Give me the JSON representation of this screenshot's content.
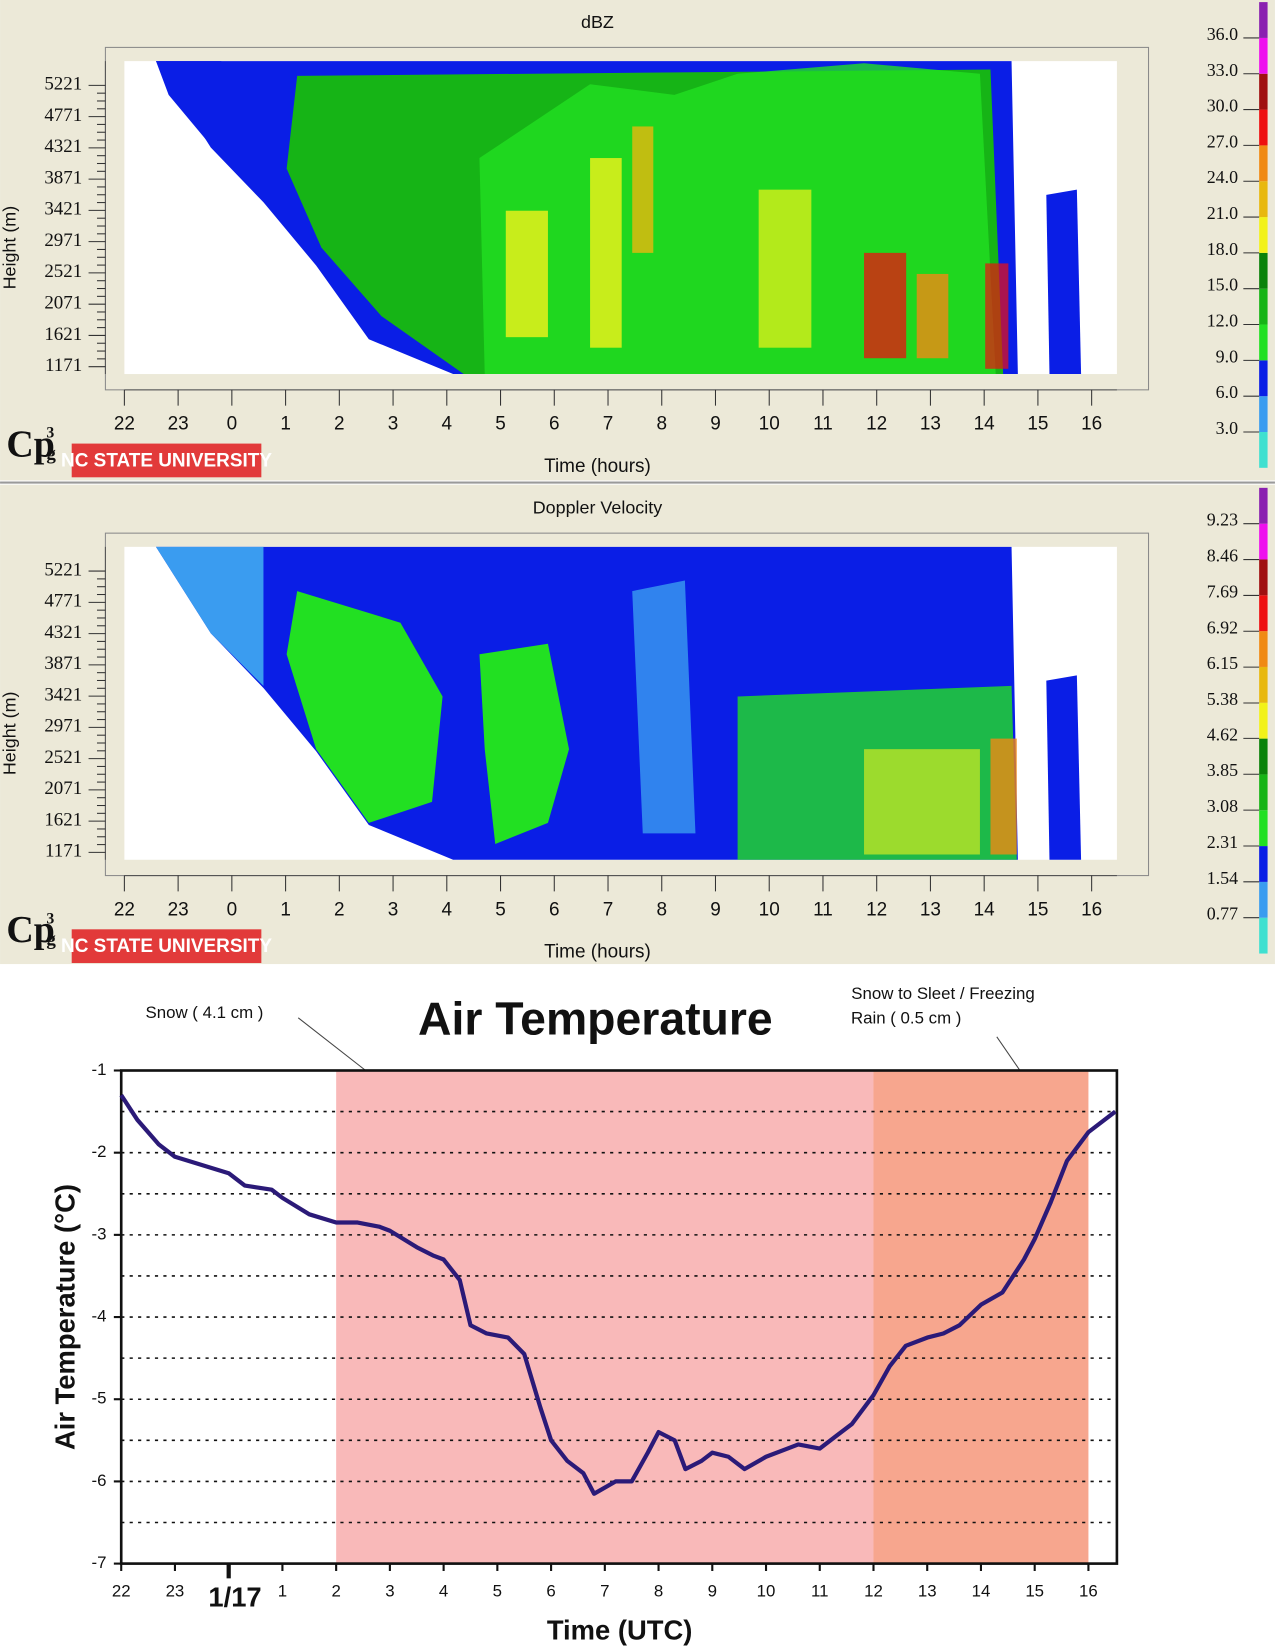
{
  "chart_data": [
    {
      "type": "heatmap",
      "title": "dBZ",
      "x_label": "Time (hours)",
      "y_label": "Height (m)",
      "xlim": [
        -2,
        16.47
      ],
      "xticks": [
        {
          "value": -2,
          "label": "22"
        },
        {
          "value": -1,
          "label": "23"
        },
        0,
        1,
        2,
        3,
        4,
        5,
        6,
        7,
        8,
        9,
        10,
        11,
        12,
        13,
        14,
        15,
        16
      ],
      "ylim": [
        1065,
        5570
      ],
      "yticks": [
        1171,
        1621,
        2071,
        2521,
        2971,
        3421,
        3871,
        4321,
        4771,
        5221
      ],
      "colorbar": {
        "lim": [
          0,
          39
        ],
        "ticks": [
          {
            "value": 3,
            "label": "3.0"
          },
          {
            "value": 6,
            "label": "6.0"
          },
          {
            "value": 9,
            "label": "9.0"
          },
          {
            "value": 12,
            "label": "12.0"
          },
          {
            "value": 15,
            "label": "15.0"
          },
          {
            "value": 18,
            "label": "18.0"
          },
          {
            "value": 21,
            "label": "21.0"
          },
          {
            "value": 24,
            "label": "24.0"
          },
          {
            "value": 27,
            "label": "27.0"
          },
          {
            "value": 30,
            "label": "30.0"
          },
          {
            "value": 33,
            "label": "33.0"
          },
          {
            "value": 36,
            "label": "36.0"
          }
        ],
        "colors": [
          "#40e0d0",
          "#3a9cf0",
          "#0a1ee6",
          "#22e022",
          "#16b416",
          "#0a820a",
          "#f2f21a",
          "#e8b80e",
          "#f08a14",
          "#ee1010",
          "#a01010",
          "#ee10ee",
          "#8a20b0"
        ]
      },
      "logo": {
        "mark": "Cp",
        "sup": "3",
        "sub": "g",
        "university": "NC STATE UNIVERSITY"
      }
    },
    {
      "type": "heatmap",
      "title": "Doppler Velocity",
      "x_label": "Time (hours)",
      "y_label": "Height (m)",
      "xlim": [
        -2,
        16.47
      ],
      "xticks": [
        {
          "value": -2,
          "label": "22"
        },
        {
          "value": -1,
          "label": "23"
        },
        0,
        1,
        2,
        3,
        4,
        5,
        6,
        7,
        8,
        9,
        10,
        11,
        12,
        13,
        14,
        15,
        16
      ],
      "ylim": [
        1065,
        5570
      ],
      "yticks": [
        1171,
        1621,
        2071,
        2521,
        2971,
        3421,
        3871,
        4321,
        4771,
        5221
      ],
      "colorbar": {
        "lim": [
          0,
          10
        ],
        "ticks": [
          0.77,
          1.54,
          2.31,
          3.08,
          3.85,
          4.62,
          5.38,
          6.15,
          6.92,
          7.69,
          8.46,
          9.23
        ],
        "colors": [
          "#40e0d0",
          "#3a9cf0",
          "#0a1ee6",
          "#22e022",
          "#16b416",
          "#0a820a",
          "#f2f21a",
          "#e8b80e",
          "#f08a14",
          "#ee1010",
          "#a01010",
          "#ee10ee",
          "#8a20b0"
        ]
      },
      "logo": {
        "mark": "Cp",
        "sup": "3",
        "sub": "g",
        "university": "NC STATE UNIVERSITY"
      }
    },
    {
      "type": "line",
      "title": "Air Temperature",
      "x_label": "Time (UTC)",
      "y_label": "Air Temperature (°C)",
      "xlim": [
        -2,
        16.53
      ],
      "xticks": [
        {
          "value": -2,
          "label": "22"
        },
        {
          "value": -1,
          "label": "23"
        },
        {
          "value": 0,
          "label": "1/17"
        },
        1,
        2,
        3,
        4,
        5,
        6,
        7,
        8,
        9,
        10,
        11,
        12,
        13,
        14,
        15,
        16
      ],
      "ylim": [
        -7,
        -1
      ],
      "yticks": [
        -7,
        -6,
        -5,
        -4,
        -3,
        -2,
        -1
      ],
      "gridlines": [
        -6.5,
        -6,
        -5.5,
        -5,
        -4.5,
        -4,
        -3.5,
        -3,
        -2.5,
        -2,
        -1.5
      ],
      "regions": [
        {
          "x": [
            2,
            12
          ],
          "color": "#f9b9b9"
        },
        {
          "x": [
            12,
            16
          ],
          "color": "#f7a68e"
        }
      ],
      "annotations": [
        {
          "lines": [
            "Snow ( 4.1 cm )"
          ]
        },
        {
          "lines": [
            "Snow to Sleet / Freezing",
            "Rain ( 0.5 cm )"
          ]
        }
      ],
      "color": "#2b1a78",
      "x": [
        -2.0,
        -1.7,
        -1.3,
        -1.0,
        -0.5,
        0,
        0.3,
        0.8,
        1.0,
        1.5,
        2.0,
        2.4,
        2.8,
        3.0,
        3.5,
        3.8,
        4.0,
        4.3,
        4.5,
        4.8,
        5.2,
        5.5,
        5.8,
        6.0,
        6.3,
        6.6,
        6.8,
        7.2,
        7.5,
        7.8,
        8.0,
        8.3,
        8.5,
        8.8,
        9.0,
        9.3,
        9.6,
        10.0,
        10.4,
        10.6,
        11.0,
        11.3,
        11.6,
        12.0,
        12.3,
        12.6,
        13.0,
        13.3,
        13.6,
        14.0,
        14.4,
        14.8,
        15.0,
        15.3,
        15.6,
        16.0,
        16.5
      ],
      "values": [
        -1.3,
        -1.6,
        -1.9,
        -2.05,
        -2.15,
        -2.25,
        -2.4,
        -2.45,
        -2.55,
        -2.75,
        -2.85,
        -2.85,
        -2.9,
        -2.95,
        -3.15,
        -3.25,
        -3.3,
        -3.55,
        -4.1,
        -4.2,
        -4.25,
        -4.45,
        -5.1,
        -5.5,
        -5.75,
        -5.9,
        -6.15,
        -6.0,
        -6.0,
        -5.65,
        -5.4,
        -5.5,
        -5.85,
        -5.75,
        -5.65,
        -5.7,
        -5.85,
        -5.7,
        -5.6,
        -5.55,
        -5.6,
        -5.45,
        -5.3,
        -4.95,
        -4.6,
        -4.35,
        -4.25,
        -4.2,
        -4.1,
        -3.85,
        -3.7,
        -3.3,
        -3.05,
        -2.6,
        -2.1,
        -1.75,
        -1.5
      ]
    }
  ]
}
